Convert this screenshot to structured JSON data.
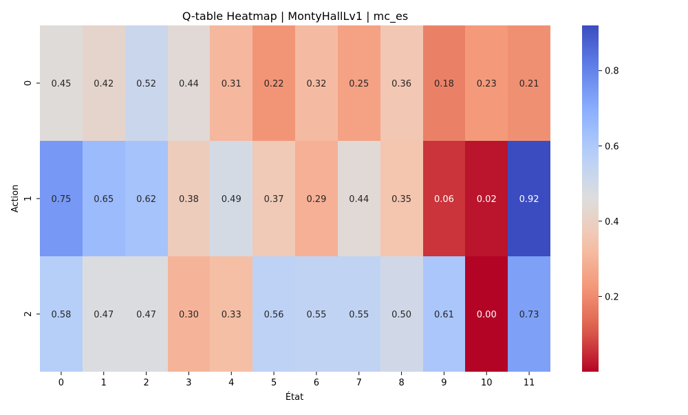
{
  "chart_data": {
    "type": "heatmap",
    "title": "Q-table Heatmap | MontyHallLv1 | mc_es",
    "xlabel": "État",
    "ylabel": "Action",
    "x_categories": [
      "0",
      "1",
      "2",
      "3",
      "4",
      "5",
      "6",
      "7",
      "8",
      "9",
      "10",
      "11"
    ],
    "y_categories": [
      "0",
      "1",
      "2"
    ],
    "values": [
      [
        0.45,
        0.42,
        0.52,
        0.44,
        0.31,
        0.22,
        0.32,
        0.25,
        0.36,
        0.18,
        0.23,
        0.21
      ],
      [
        0.75,
        0.65,
        0.62,
        0.38,
        0.49,
        0.37,
        0.29,
        0.44,
        0.35,
        0.06,
        0.02,
        0.92
      ],
      [
        0.58,
        0.47,
        0.47,
        0.3,
        0.33,
        0.56,
        0.55,
        0.55,
        0.5,
        0.61,
        0.0,
        0.73
      ]
    ],
    "colormap": "coolwarm_r",
    "vmin": 0.0,
    "vmax": 0.92,
    "colorbar": {
      "ticks": [
        0.2,
        0.4,
        0.6,
        0.8
      ],
      "tick_labels": [
        "0.2",
        "0.4",
        "0.6",
        "0.8"
      ]
    },
    "grid": false,
    "annotations": true
  }
}
